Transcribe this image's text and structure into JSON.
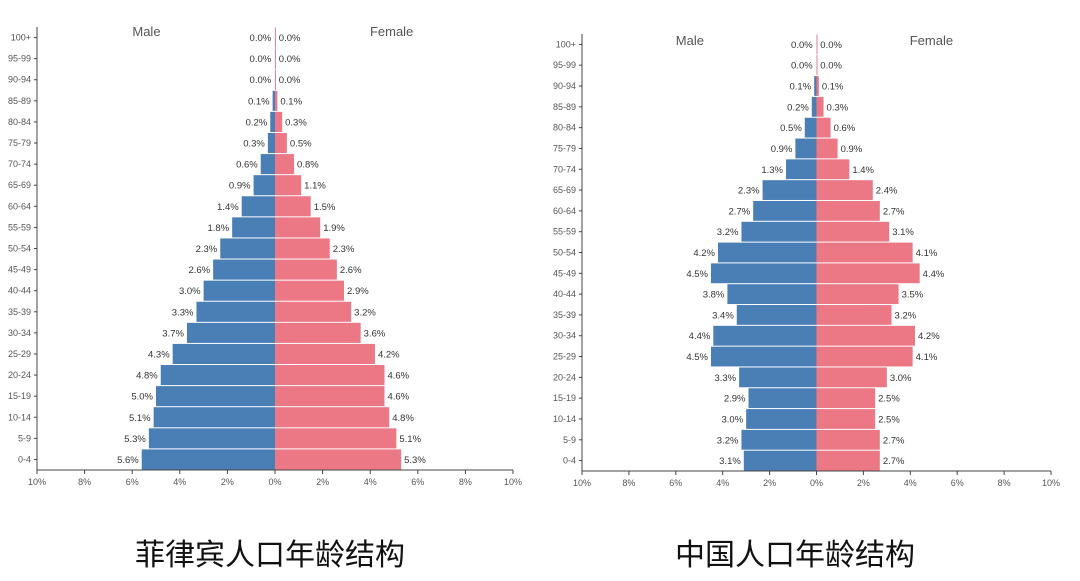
{
  "colors": {
    "male": "#4a7fb5",
    "female": "#ec7886",
    "axis": "#444444"
  },
  "chart_data": [
    {
      "type": "bar",
      "orientation": "horizontal",
      "layout": "population-pyramid",
      "title": "菲律宾人口年龄结构",
      "male_label": "Male",
      "female_label": "Female",
      "xlim": [
        -10,
        10
      ],
      "x_tick_labels": [
        "10%",
        "8%",
        "6%",
        "4%",
        "2%",
        "0%",
        "2%",
        "4%",
        "6%",
        "8%",
        "10%"
      ],
      "categories": [
        "0-4",
        "5-9",
        "10-14",
        "15-19",
        "20-24",
        "25-29",
        "30-34",
        "35-39",
        "40-44",
        "45-49",
        "50-54",
        "55-59",
        "60-64",
        "65-69",
        "70-74",
        "75-79",
        "80-84",
        "85-89",
        "90-94",
        "95-99",
        "100+"
      ],
      "series": [
        {
          "name": "Male",
          "values": [
            5.6,
            5.3,
            5.1,
            5.0,
            4.8,
            4.3,
            3.7,
            3.3,
            3.0,
            2.6,
            2.3,
            1.8,
            1.4,
            0.9,
            0.6,
            0.3,
            0.2,
            0.1,
            0.0,
            0.0,
            0.0
          ],
          "labels": [
            "5.6%",
            "5.3%",
            "5.1%",
            "5.0%",
            "4.8%",
            "4.3%",
            "3.7%",
            "3.3%",
            "3.0%",
            "2.6%",
            "2.3%",
            "1.8%",
            "1.4%",
            "0.9%",
            "0.6%",
            "0.3%",
            "0.2%",
            "0.1%",
            "0.0%",
            "0.0%",
            "0.0%"
          ]
        },
        {
          "name": "Female",
          "values": [
            5.3,
            5.1,
            4.8,
            4.6,
            4.6,
            4.2,
            3.6,
            3.2,
            2.9,
            2.6,
            2.3,
            1.9,
            1.5,
            1.1,
            0.8,
            0.5,
            0.3,
            0.1,
            0.0,
            0.0,
            0.0
          ],
          "labels": [
            "5.3%",
            "5.1%",
            "4.8%",
            "4.6%",
            "4.6%",
            "4.2%",
            "3.6%",
            "3.2%",
            "2.9%",
            "2.6%",
            "2.3%",
            "1.9%",
            "1.5%",
            "1.1%",
            "0.8%",
            "0.5%",
            "0.3%",
            "0.1%",
            "0.0%",
            "0.0%",
            "0.0%"
          ]
        }
      ]
    },
    {
      "type": "bar",
      "orientation": "horizontal",
      "layout": "population-pyramid",
      "title": "中国人口年龄结构",
      "male_label": "Male",
      "female_label": "Female",
      "xlim": [
        -10,
        10
      ],
      "x_tick_labels": [
        "10%",
        "8%",
        "6%",
        "4%",
        "2%",
        "0%",
        "2%",
        "4%",
        "6%",
        "8%",
        "10%"
      ],
      "categories": [
        "0-4",
        "5-9",
        "10-14",
        "15-19",
        "20-24",
        "25-29",
        "30-34",
        "35-39",
        "40-44",
        "45-49",
        "50-54",
        "55-59",
        "60-64",
        "65-69",
        "70-74",
        "75-79",
        "80-84",
        "85-89",
        "90-94",
        "95-99",
        "100+"
      ],
      "series": [
        {
          "name": "Male",
          "values": [
            3.1,
            3.2,
            3.0,
            2.9,
            3.3,
            4.5,
            4.4,
            3.4,
            3.8,
            4.5,
            4.2,
            3.2,
            2.7,
            2.3,
            1.3,
            0.9,
            0.5,
            0.2,
            0.1,
            0.0,
            0.0
          ],
          "labels": [
            "3.1%",
            "3.2%",
            "3.0%",
            "2.9%",
            "3.3%",
            "4.5%",
            "4.4%",
            "3.4%",
            "3.8%",
            "4.5%",
            "4.2%",
            "3.2%",
            "2.7%",
            "2.3%",
            "1.3%",
            "0.9%",
            "0.5%",
            "0.2%",
            "0.1%",
            "0.0%",
            "0.0%"
          ]
        },
        {
          "name": "Female",
          "values": [
            2.7,
            2.7,
            2.5,
            2.5,
            3.0,
            4.1,
            4.2,
            3.2,
            3.5,
            4.4,
            4.1,
            3.1,
            2.7,
            2.4,
            1.4,
            0.9,
            0.6,
            0.3,
            0.1,
            0.0,
            0.0
          ],
          "labels": [
            "2.7%",
            "2.7%",
            "2.5%",
            "2.5%",
            "3.0%",
            "4.1%",
            "4.2%",
            "3.2%",
            "3.5%",
            "4.4%",
            "4.1%",
            "3.1%",
            "2.7%",
            "2.4%",
            "1.4%",
            "0.9%",
            "0.6%",
            "0.3%",
            "0.1%",
            "0.0%",
            "0.0%"
          ]
        }
      ]
    }
  ]
}
